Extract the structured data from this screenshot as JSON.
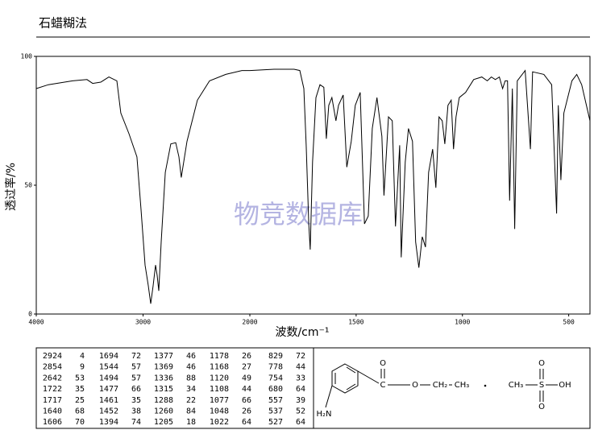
{
  "header": {
    "title": "石蜡糊法"
  },
  "chart_data": {
    "type": "line",
    "xlabel": "波数/cm⁻¹",
    "ylabel": "透过率/%",
    "watermark": "物竞数据库",
    "xlim": [
      4000,
      400
    ],
    "x_scale_break": 2000,
    "xticks": [
      4000,
      3000,
      2000,
      1500,
      1000,
      500
    ],
    "ylim": [
      0,
      100
    ],
    "yticks": [
      0,
      50,
      100
    ],
    "series": [
      {
        "color": "#000000",
        "x": [
          4000,
          3887,
          3660,
          3525,
          3472,
          3396,
          3320,
          3245,
          3208,
          3132,
          3057,
          3019,
          2981,
          2951,
          2928,
          2906,
          2883,
          2868,
          2853,
          2830,
          2792,
          2740,
          2694,
          2664,
          2642,
          2589,
          2491,
          2377,
          2226,
          2075,
          2000,
          1886,
          1792,
          1765,
          1746,
          1735,
          1723,
          1716,
          1705,
          1689,
          1670,
          1652,
          1640,
          1629,
          1614,
          1595,
          1583,
          1561,
          1544,
          1523,
          1504,
          1481,
          1461,
          1443,
          1424,
          1402,
          1379,
          1369,
          1348,
          1330,
          1315,
          1295,
          1288,
          1269,
          1254,
          1235,
          1220,
          1205,
          1189,
          1174,
          1159,
          1140,
          1125,
          1110,
          1095,
          1083,
          1068,
          1053,
          1042,
          1030,
          1015,
          985,
          947,
          909,
          883,
          864,
          845,
          826,
          811,
          799,
          788,
          778,
          765,
          754,
          742,
          705,
          680,
          670,
          617,
          580,
          557,
          549,
          537,
          523,
          485,
          462,
          439,
          400
        ],
        "values": [
          87.5,
          89,
          90.5,
          91,
          89.5,
          90,
          92,
          90.5,
          78,
          70,
          61,
          40.5,
          19,
          11,
          4,
          11,
          19,
          15,
          9,
          28,
          55,
          66,
          66.5,
          61,
          53,
          67,
          83,
          90.5,
          93,
          94.5,
          94.5,
          95,
          95,
          94.5,
          87.5,
          65.5,
          35,
          25,
          59,
          84,
          89,
          88,
          68,
          81,
          84,
          75,
          81,
          85,
          57,
          67,
          81,
          86,
          35,
          38,
          72,
          84,
          69,
          46,
          76.5,
          75,
          34,
          65.5,
          22,
          59,
          72,
          67,
          28,
          18,
          30,
          26,
          55,
          64,
          49,
          76.5,
          75,
          66,
          81,
          83,
          64,
          76.5,
          84,
          86,
          91,
          92,
          90.5,
          92,
          91,
          92,
          87.5,
          90.5,
          90.5,
          44,
          87.5,
          33,
          90.5,
          94.5,
          64,
          94,
          93,
          89,
          39,
          81,
          52,
          78,
          90.5,
          93,
          89,
          75
        ]
      }
    ]
  },
  "peak_table": [
    [
      [
        2924,
        4
      ],
      [
        2854,
        9
      ],
      [
        2642,
        53
      ],
      [
        1722,
        35
      ],
      [
        1717,
        25
      ],
      [
        1640,
        68
      ],
      [
        1606,
        70
      ]
    ],
    [
      [
        1694,
        72
      ],
      [
        1544,
        57
      ],
      [
        1494,
        57
      ],
      [
        1477,
        66
      ],
      [
        1461,
        35
      ],
      [
        1452,
        38
      ],
      [
        1394,
        74
      ]
    ],
    [
      [
        1377,
        46
      ],
      [
        1369,
        46
      ],
      [
        1336,
        88
      ],
      [
        1315,
        34
      ],
      [
        1288,
        22
      ],
      [
        1260,
        84
      ],
      [
        1205,
        18
      ]
    ],
    [
      [
        1178,
        26
      ],
      [
        1168,
        27
      ],
      [
        1120,
        49
      ],
      [
        1108,
        44
      ],
      [
        1077,
        66
      ],
      [
        1048,
        26
      ],
      [
        1022,
        64
      ]
    ],
    [
      [
        829,
        72
      ],
      [
        778,
        44
      ],
      [
        754,
        33
      ],
      [
        680,
        64
      ],
      [
        557,
        39
      ],
      [
        537,
        52
      ],
      [
        527,
        64
      ]
    ]
  ],
  "structure": {
    "labels": [
      "H₂N",
      "C",
      "O",
      "O",
      "CH₂",
      "CH₃",
      "CH₃",
      "S",
      "O",
      "O",
      "OH"
    ]
  }
}
